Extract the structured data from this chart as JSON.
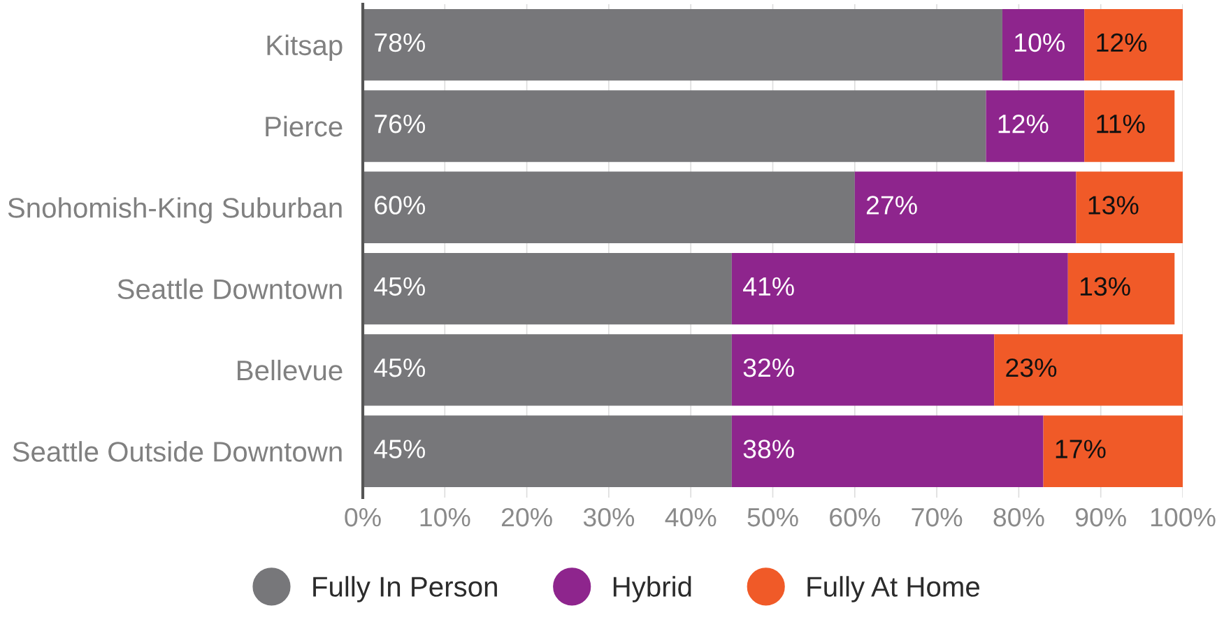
{
  "chart_data": {
    "type": "bar",
    "orientation": "horizontal",
    "stacked": true,
    "categories": [
      "Kitsap",
      "Pierce",
      "Snohomish-King Suburban",
      "Seattle Downtown",
      "Bellevue",
      "Seattle Outside Downtown"
    ],
    "series": [
      {
        "name": "Fully In Person",
        "color": "#77777a",
        "values": [
          78,
          76,
          60,
          45,
          45,
          45
        ],
        "value_labels": [
          "78%",
          "76%",
          "60%",
          "45%",
          "45%",
          "45%"
        ]
      },
      {
        "name": "Hybrid",
        "color": "#8e258d",
        "values": [
          10,
          12,
          27,
          41,
          32,
          38
        ],
        "value_labels": [
          "10%",
          "12%",
          "27%",
          "41%",
          "32%",
          "38%"
        ]
      },
      {
        "name": "Fully At Home",
        "color": "#f05a28",
        "values": [
          12,
          11,
          13,
          13,
          23,
          17
        ],
        "value_labels": [
          "12%",
          "11%",
          "13%",
          "13%",
          "23%",
          "17%"
        ]
      }
    ],
    "xlim": [
      0,
      100
    ],
    "xticks": [
      {
        "value": 0,
        "label": "0%"
      },
      {
        "value": 10,
        "label": "10%"
      },
      {
        "value": 20,
        "label": "20%"
      },
      {
        "value": 30,
        "label": "30%"
      },
      {
        "value": 40,
        "label": "40%"
      },
      {
        "value": 50,
        "label": "50%"
      },
      {
        "value": 60,
        "label": "60%"
      },
      {
        "value": 70,
        "label": "70%"
      },
      {
        "value": 80,
        "label": "80%"
      },
      {
        "value": 90,
        "label": "90%"
      },
      {
        "value": 100,
        "label": "100%"
      }
    ],
    "grid": "x",
    "legend": "bottom"
  }
}
